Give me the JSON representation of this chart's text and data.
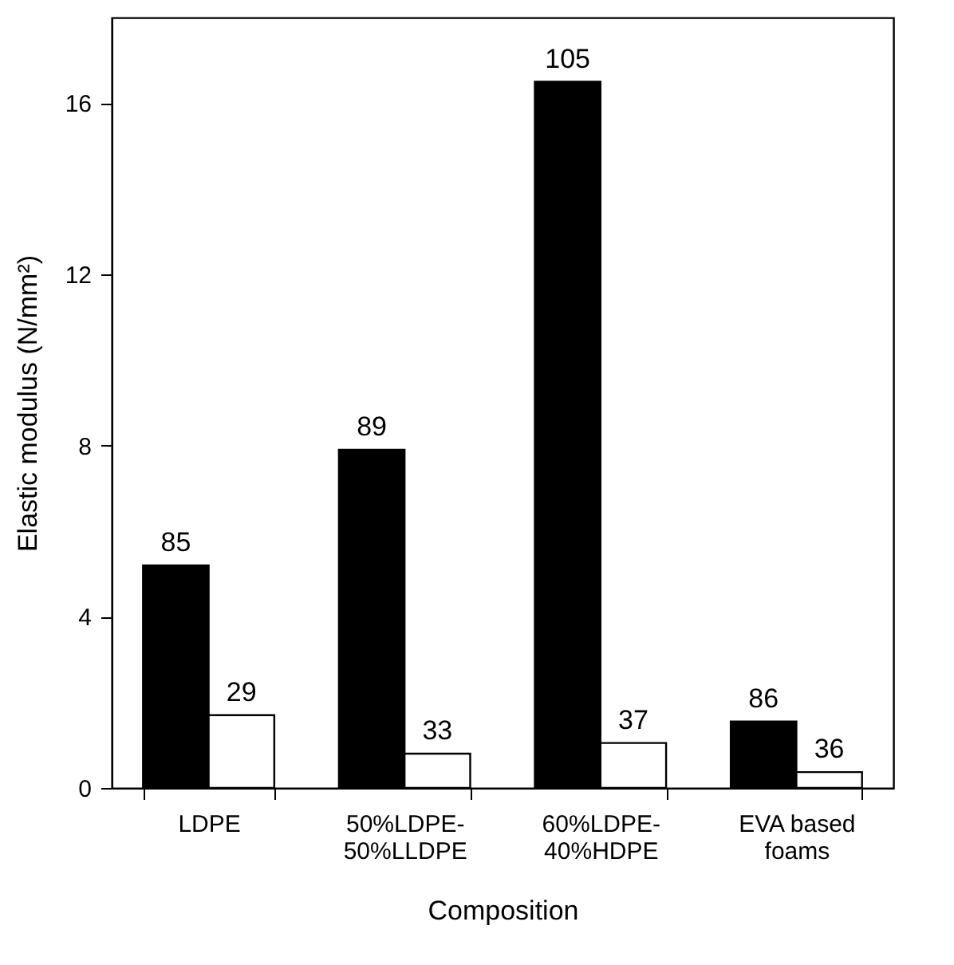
{
  "chart_data": {
    "type": "bar",
    "xlabel": "Composition",
    "ylabel": "Elastic modulus (N/mm²)",
    "categories": [
      "LDPE",
      "50%LDPE-50%LLDPE",
      "60%LDPE-40%HDPE",
      "EVA based foams"
    ],
    "series": [
      {
        "color": "#000000",
        "values": [
          5.2,
          7.9,
          16.5,
          1.55
        ]
      },
      {
        "color": "#ffffff",
        "values": [
          1.7,
          0.8,
          1.05,
          0.37
        ]
      }
    ],
    "annotations": [
      {
        "text": "85",
        "x": "LDPE",
        "y": 5.2
      },
      {
        "text": "29",
        "x": "LDPE",
        "y": 1.7
      },
      {
        "text": "89",
        "x": "50%LDPE-50%LLDPE",
        "y": 7.9
      },
      {
        "text": "33",
        "x": "50%LDPE-50%LLDPE",
        "y": 0.8
      },
      {
        "text": "105",
        "x": "60%LDPE-40%HDPE",
        "y": 16.5
      },
      {
        "text": "37",
        "x": "60%LDPE-40%HDPE",
        "y": 1.05
      },
      {
        "text": "86",
        "x": "EVA based foams",
        "y": 1.55
      },
      {
        "text": "36",
        "x": "EVA based foams",
        "y": 0.37
      }
    ],
    "ylim": [
      0,
      18
    ],
    "yticks": [
      0,
      4,
      8,
      12,
      16
    ],
    "grid": false,
    "legend": false
  }
}
